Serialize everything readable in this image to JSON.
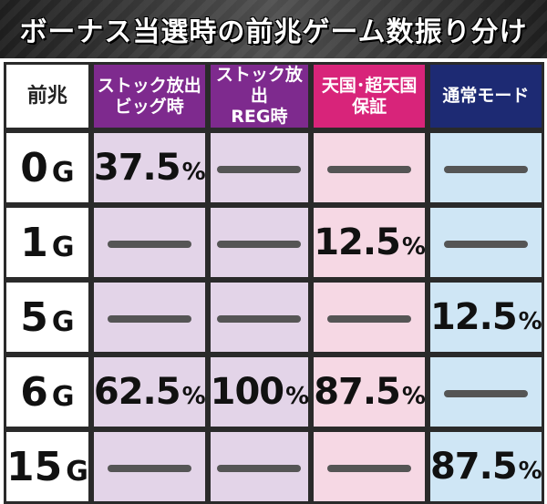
{
  "title": "ボーナス当選時の前兆ゲーム数振り分け",
  "header": {
    "corner": "前兆",
    "columns": [
      {
        "line1": "ストック放出",
        "line2": "ビッグ時",
        "color": "#7e2a8e"
      },
      {
        "line1": "ストック放出",
        "line2": "REG時",
        "color": "#7e2a8e"
      },
      {
        "line1": "天国･超天国",
        "line2": "保証",
        "color": "#d8247a"
      },
      {
        "line1": "通常モード",
        "line2": "",
        "color": "#1d2a73"
      }
    ]
  },
  "rows": [
    {
      "num": "0",
      "unit": "G",
      "cells": [
        {
          "v": "37.5",
          "u": "%"
        },
        {
          "v": "",
          "u": ""
        },
        {
          "v": "",
          "u": ""
        },
        {
          "v": "",
          "u": ""
        }
      ]
    },
    {
      "num": "1",
      "unit": "G",
      "cells": [
        {
          "v": "",
          "u": ""
        },
        {
          "v": "",
          "u": ""
        },
        {
          "v": "12.5",
          "u": "%"
        },
        {
          "v": "",
          "u": ""
        }
      ]
    },
    {
      "num": "5",
      "unit": "G",
      "cells": [
        {
          "v": "",
          "u": ""
        },
        {
          "v": "",
          "u": ""
        },
        {
          "v": "",
          "u": ""
        },
        {
          "v": "12.5",
          "u": "%"
        }
      ]
    },
    {
      "num": "6",
      "unit": "G",
      "cells": [
        {
          "v": "62.5",
          "u": "%"
        },
        {
          "v": "100",
          "u": "%"
        },
        {
          "v": "87.5",
          "u": "%"
        },
        {
          "v": "",
          "u": ""
        }
      ]
    },
    {
      "num": "15",
      "unit": "G",
      "cells": [
        {
          "v": "",
          "u": ""
        },
        {
          "v": "",
          "u": ""
        },
        {
          "v": "",
          "u": ""
        },
        {
          "v": "87.5",
          "u": "%"
        }
      ]
    }
  ]
}
